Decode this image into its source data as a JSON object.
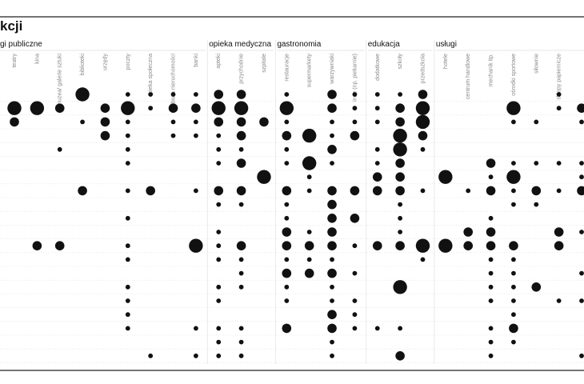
{
  "chart_data": {
    "type": "dotmatrix",
    "title": "kcji",
    "color": "#111111",
    "groups": [
      {
        "name": "gi publiczne",
        "categories": [
          "teatry",
          "kina",
          "muzea/ galerie sztuki",
          "biblioteki",
          "urzędy",
          "poczty",
          "opieka społeczna",
          "biura nieruchomości",
          "banki"
        ]
      },
      {
        "name": "opieka medyczna",
        "categories": [
          "apteki",
          "przychodnie",
          "szpitale"
        ]
      },
      {
        "name": "gastronomia",
        "categories": [
          "restauracje",
          "supermarkety",
          "warzywniaki",
          "inne (np. piekarnie)"
        ]
      },
      {
        "name": "edukacja",
        "categories": [
          "dodatkowe",
          "szkoły",
          "przedszkola"
        ]
      },
      {
        "name": "usługi",
        "categories": [
          "hotele",
          "centrum handlowe",
          "mechanik itp.",
          "ośrodki sportowe",
          "siłownie",
          "sklepy papiernicze",
          null
        ]
      }
    ],
    "rows": [
      [
        0,
        0,
        0,
        3,
        0,
        1,
        1,
        1,
        1,
        2,
        2,
        0,
        1,
        0,
        2,
        1,
        1,
        1,
        2,
        0,
        0,
        0,
        0,
        0,
        1,
        0
      ],
      [
        3,
        3,
        2,
        0,
        2,
        3,
        1,
        2,
        2,
        3,
        3,
        0,
        3,
        0,
        2,
        1,
        1,
        2,
        3,
        0,
        0,
        0,
        3,
        0,
        1,
        2
      ],
      [
        2,
        0,
        0,
        1,
        2,
        1,
        0,
        1,
        1,
        2,
        2,
        2,
        1,
        0,
        1,
        1,
        1,
        2,
        3,
        0,
        0,
        0,
        1,
        1,
        0,
        1
      ],
      [
        0,
        0,
        0,
        0,
        2,
        1,
        0,
        1,
        1,
        1,
        2,
        0,
        2,
        3,
        1,
        2,
        0,
        3,
        2,
        0,
        0,
        0,
        0,
        0,
        0,
        0
      ],
      [
        0,
        0,
        1,
        0,
        0,
        1,
        0,
        0,
        0,
        1,
        1,
        0,
        1,
        0,
        2,
        0,
        1,
        3,
        1,
        0,
        0,
        0,
        0,
        0,
        0,
        0
      ],
      [
        0,
        0,
        0,
        0,
        0,
        1,
        0,
        0,
        0,
        1,
        2,
        0,
        1,
        3,
        1,
        0,
        1,
        2,
        0,
        0,
        0,
        2,
        1,
        1,
        1,
        1
      ],
      [
        0,
        0,
        0,
        0,
        0,
        0,
        0,
        0,
        0,
        0,
        0,
        3,
        0,
        1,
        0,
        0,
        2,
        2,
        0,
        3,
        0,
        1,
        3,
        0,
        0,
        1
      ],
      [
        0,
        0,
        0,
        2,
        0,
        1,
        2,
        0,
        1,
        2,
        2,
        0,
        2,
        1,
        2,
        2,
        2,
        2,
        1,
        0,
        1,
        2,
        1,
        2,
        1,
        2
      ],
      [
        0,
        0,
        0,
        0,
        0,
        0,
        0,
        0,
        0,
        1,
        1,
        0,
        1,
        0,
        2,
        0,
        0,
        1,
        0,
        0,
        0,
        0,
        1,
        1,
        0,
        0
      ],
      [
        0,
        0,
        0,
        0,
        0,
        1,
        0,
        0,
        0,
        0,
        0,
        0,
        1,
        0,
        2,
        2,
        0,
        1,
        0,
        0,
        0,
        1,
        0,
        0,
        0,
        0
      ],
      [
        0,
        0,
        0,
        0,
        0,
        0,
        0,
        0,
        0,
        1,
        0,
        0,
        2,
        1,
        2,
        0,
        0,
        1,
        0,
        0,
        2,
        2,
        0,
        0,
        2,
        1
      ],
      [
        0,
        2,
        2,
        0,
        0,
        1,
        0,
        0,
        3,
        1,
        2,
        0,
        2,
        2,
        2,
        1,
        2,
        2,
        3,
        3,
        2,
        2,
        2,
        0,
        2,
        0
      ],
      [
        0,
        0,
        0,
        0,
        0,
        1,
        0,
        0,
        0,
        1,
        1,
        0,
        1,
        1,
        1,
        0,
        0,
        0,
        1,
        0,
        0,
        1,
        1,
        0,
        0,
        0
      ],
      [
        0,
        0,
        0,
        0,
        0,
        0,
        0,
        0,
        0,
        0,
        1,
        0,
        2,
        2,
        2,
        1,
        0,
        0,
        0,
        0,
        0,
        1,
        1,
        0,
        0,
        1
      ],
      [
        0,
        0,
        0,
        0,
        0,
        1,
        0,
        0,
        0,
        1,
        1,
        0,
        1,
        0,
        1,
        0,
        0,
        3,
        0,
        0,
        0,
        1,
        1,
        2,
        0,
        0
      ],
      [
        0,
        0,
        0,
        0,
        0,
        1,
        0,
        0,
        0,
        1,
        0,
        0,
        1,
        0,
        1,
        1,
        0,
        0,
        0,
        0,
        0,
        1,
        1,
        0,
        1,
        1
      ],
      [
        0,
        0,
        0,
        0,
        0,
        1,
        0,
        0,
        0,
        0,
        0,
        0,
        0,
        0,
        2,
        1,
        0,
        0,
        0,
        0,
        0,
        0,
        1,
        0,
        0,
        0
      ],
      [
        0,
        0,
        0,
        0,
        0,
        1,
        0,
        0,
        1,
        1,
        1,
        0,
        2,
        0,
        2,
        1,
        1,
        1,
        0,
        0,
        0,
        1,
        2,
        0,
        0,
        0
      ],
      [
        0,
        0,
        0,
        0,
        0,
        0,
        0,
        0,
        0,
        1,
        1,
        0,
        0,
        0,
        1,
        0,
        0,
        0,
        0,
        0,
        0,
        1,
        1,
        0,
        0,
        0
      ],
      [
        0,
        0,
        0,
        0,
        0,
        0,
        1,
        0,
        1,
        1,
        1,
        0,
        0,
        0,
        1,
        0,
        0,
        2,
        0,
        0,
        0,
        1,
        0,
        0,
        0,
        1
      ]
    ]
  }
}
